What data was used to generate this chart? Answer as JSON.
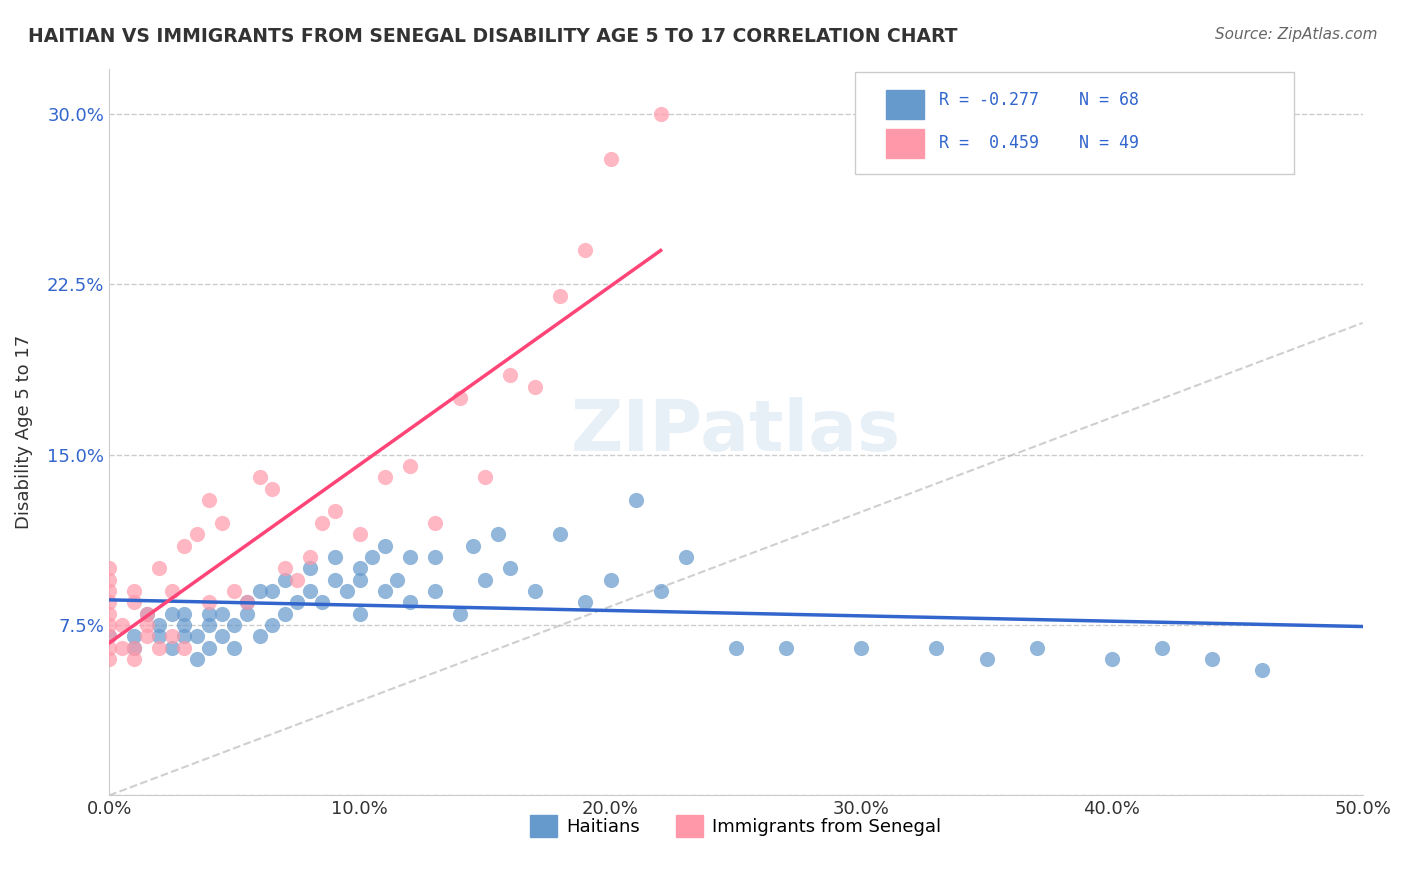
{
  "title": "HAITIAN VS IMMIGRANTS FROM SENEGAL DISABILITY AGE 5 TO 17 CORRELATION CHART",
  "source": "Source: ZipAtlas.com",
  "xlabel": "",
  "ylabel": "Disability Age 5 to 17",
  "xlim": [
    0.0,
    0.5
  ],
  "ylim": [
    0.0,
    0.32
  ],
  "xticks": [
    0.0,
    0.1,
    0.2,
    0.3,
    0.4,
    0.5
  ],
  "xticklabels": [
    "0.0%",
    "10.0%",
    "20.0%",
    "30.0%",
    "40.0%",
    "50.0%"
  ],
  "yticks": [
    0.0,
    0.075,
    0.15,
    0.225,
    0.3
  ],
  "yticklabels": [
    "",
    "7.5%",
    "15.0%",
    "22.5%",
    "30.0%"
  ],
  "grid_color": "#cccccc",
  "background_color": "#ffffff",
  "watermark": "ZIPatlas",
  "legend_r1": "R = -0.277",
  "legend_n1": "N = 68",
  "legend_r2": "R =  0.459",
  "legend_n2": "N = 49",
  "color_blue": "#6699cc",
  "color_pink": "#ff99aa",
  "color_blue_line": "#3366cc",
  "color_pink_line": "#ff4477",
  "color_dashed": "#bbbbbb",
  "legend_label1": "Haitians",
  "legend_label2": "Immigrants from Senegal",
  "blue_scatter_x": [
    0.0,
    0.01,
    0.01,
    0.015,
    0.02,
    0.02,
    0.025,
    0.025,
    0.03,
    0.03,
    0.03,
    0.035,
    0.035,
    0.04,
    0.04,
    0.04,
    0.045,
    0.045,
    0.05,
    0.05,
    0.055,
    0.055,
    0.06,
    0.06,
    0.065,
    0.065,
    0.07,
    0.07,
    0.075,
    0.08,
    0.08,
    0.085,
    0.09,
    0.09,
    0.095,
    0.1,
    0.1,
    0.1,
    0.105,
    0.11,
    0.11,
    0.115,
    0.12,
    0.12,
    0.13,
    0.13,
    0.14,
    0.145,
    0.15,
    0.155,
    0.16,
    0.17,
    0.18,
    0.19,
    0.2,
    0.21,
    0.22,
    0.23,
    0.25,
    0.27,
    0.3,
    0.33,
    0.35,
    0.37,
    0.4,
    0.42,
    0.44,
    0.46
  ],
  "blue_scatter_y": [
    0.07,
    0.065,
    0.07,
    0.08,
    0.07,
    0.075,
    0.065,
    0.08,
    0.07,
    0.075,
    0.08,
    0.06,
    0.07,
    0.065,
    0.075,
    0.08,
    0.07,
    0.08,
    0.065,
    0.075,
    0.08,
    0.085,
    0.07,
    0.09,
    0.075,
    0.09,
    0.08,
    0.095,
    0.085,
    0.09,
    0.1,
    0.085,
    0.095,
    0.105,
    0.09,
    0.1,
    0.08,
    0.095,
    0.105,
    0.09,
    0.11,
    0.095,
    0.105,
    0.085,
    0.09,
    0.105,
    0.08,
    0.11,
    0.095,
    0.115,
    0.1,
    0.09,
    0.115,
    0.085,
    0.095,
    0.13,
    0.09,
    0.105,
    0.065,
    0.065,
    0.065,
    0.065,
    0.06,
    0.065,
    0.06,
    0.065,
    0.06,
    0.055
  ],
  "pink_scatter_x": [
    0.0,
    0.0,
    0.0,
    0.0,
    0.0,
    0.0,
    0.0,
    0.0,
    0.0,
    0.005,
    0.005,
    0.01,
    0.01,
    0.01,
    0.01,
    0.015,
    0.015,
    0.015,
    0.02,
    0.02,
    0.025,
    0.025,
    0.03,
    0.03,
    0.035,
    0.04,
    0.04,
    0.045,
    0.05,
    0.055,
    0.06,
    0.065,
    0.07,
    0.075,
    0.08,
    0.085,
    0.09,
    0.1,
    0.11,
    0.12,
    0.13,
    0.14,
    0.15,
    0.16,
    0.17,
    0.18,
    0.19,
    0.2,
    0.22
  ],
  "pink_scatter_y": [
    0.06,
    0.065,
    0.07,
    0.075,
    0.08,
    0.085,
    0.09,
    0.095,
    0.1,
    0.065,
    0.075,
    0.06,
    0.065,
    0.085,
    0.09,
    0.07,
    0.075,
    0.08,
    0.065,
    0.1,
    0.07,
    0.09,
    0.065,
    0.11,
    0.115,
    0.085,
    0.13,
    0.12,
    0.09,
    0.085,
    0.14,
    0.135,
    0.1,
    0.095,
    0.105,
    0.12,
    0.125,
    0.115,
    0.14,
    0.145,
    0.12,
    0.175,
    0.14,
    0.185,
    0.18,
    0.22,
    0.24,
    0.28,
    0.3
  ]
}
